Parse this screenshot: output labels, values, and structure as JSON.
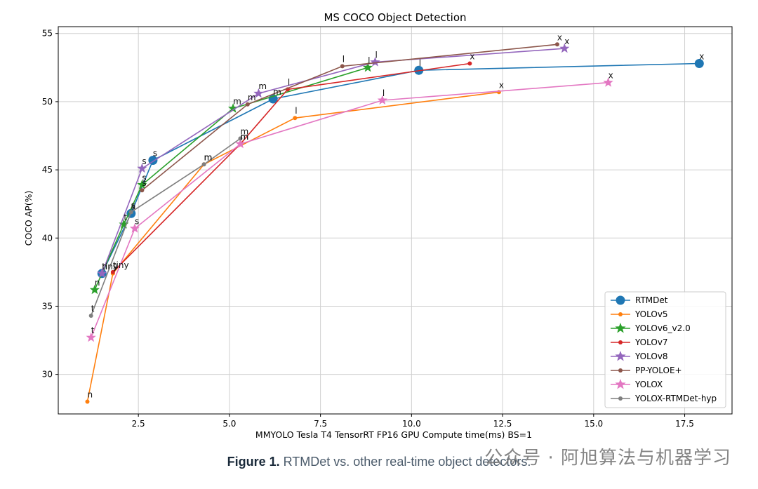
{
  "chart_data": {
    "type": "line",
    "title": "MS COCO Object Detection",
    "xlabel": "MMYOLO Tesla T4 TensorRT FP16 GPU Compute time(ms) BS=1",
    "ylabel": "COCO AP(%)",
    "xlim": [
      0.3,
      18.8
    ],
    "ylim": [
      27.1,
      55.5
    ],
    "xticks": [
      2.5,
      5.0,
      7.5,
      10.0,
      12.5,
      15.0,
      17.5
    ],
    "xtick_labels": [
      "2.5",
      "5.0",
      "7.5",
      "10.0",
      "12.5",
      "15.0",
      "17.5"
    ],
    "yticks": [
      30,
      35,
      40,
      45,
      50,
      55
    ],
    "ytick_labels": [
      "30",
      "35",
      "40",
      "45",
      "50",
      "55"
    ],
    "grid": true,
    "legend_position": "lower-right",
    "series": [
      {
        "name": "RTMDet",
        "color": "#1f77b4",
        "marker": "circle",
        "points": [
          {
            "x": 1.5,
            "y": 37.4,
            "label": "tiny"
          },
          {
            "x": 2.3,
            "y": 41.8,
            "label": "s"
          },
          {
            "x": 2.9,
            "y": 45.7,
            "label": "s"
          },
          {
            "x": 6.2,
            "y": 50.2,
            "label": "m"
          },
          {
            "x": 10.2,
            "y": 52.3,
            "label": "l"
          },
          {
            "x": 17.9,
            "y": 52.8,
            "label": "x"
          }
        ]
      },
      {
        "name": "YOLOv5",
        "color": "#ff7f0e",
        "marker": "dot",
        "points": [
          {
            "x": 1.1,
            "y": 28.0,
            "label": "n"
          },
          {
            "x": 1.8,
            "y": 37.4,
            "label": "s"
          },
          {
            "x": 4.3,
            "y": 45.4,
            "label": "m"
          },
          {
            "x": 6.8,
            "y": 48.8,
            "label": "l"
          },
          {
            "x": 12.4,
            "y": 50.7,
            "label": "x"
          }
        ]
      },
      {
        "name": "YOLOv6_v2.0",
        "color": "#2ca02c",
        "marker": "star",
        "points": [
          {
            "x": 1.3,
            "y": 36.2,
            "label": "n"
          },
          {
            "x": 2.1,
            "y": 41.0,
            "label": "t"
          },
          {
            "x": 2.6,
            "y": 43.9,
            "label": "s"
          },
          {
            "x": 5.1,
            "y": 49.5,
            "label": "m"
          },
          {
            "x": 8.8,
            "y": 52.5,
            "label": "l"
          }
        ]
      },
      {
        "name": "YOLOv7",
        "color": "#d62728",
        "marker": "dot",
        "points": [
          {
            "x": 1.8,
            "y": 37.5,
            "label": "tiny"
          },
          {
            "x": 5.3,
            "y": 46.9,
            "label": "m"
          },
          {
            "x": 6.6,
            "y": 50.9,
            "label": "l"
          },
          {
            "x": 11.6,
            "y": 52.8,
            "label": "x"
          }
        ]
      },
      {
        "name": "YOLOv8",
        "color": "#9467bd",
        "marker": "star",
        "points": [
          {
            "x": 1.5,
            "y": 37.4,
            "label": "n"
          },
          {
            "x": 2.6,
            "y": 45.1,
            "label": "s"
          },
          {
            "x": 5.8,
            "y": 50.6,
            "label": "m"
          },
          {
            "x": 9.0,
            "y": 52.9,
            "label": "l"
          },
          {
            "x": 14.2,
            "y": 53.9,
            "label": "x"
          }
        ]
      },
      {
        "name": "PP-YOLOE+",
        "color": "#8c564b",
        "marker": "dot",
        "points": [
          {
            "x": 2.6,
            "y": 43.5,
            "label": "s"
          },
          {
            "x": 5.5,
            "y": 49.8,
            "label": "m"
          },
          {
            "x": 8.1,
            "y": 52.6,
            "label": "l"
          },
          {
            "x": 14.0,
            "y": 54.2,
            "label": "x"
          }
        ]
      },
      {
        "name": "YOLOX",
        "color": "#e377c2",
        "marker": "star",
        "points": [
          {
            "x": 1.2,
            "y": 32.7,
            "label": "t"
          },
          {
            "x": 2.4,
            "y": 40.7,
            "label": "s"
          },
          {
            "x": 5.3,
            "y": 46.9,
            "label": "m"
          },
          {
            "x": 9.2,
            "y": 50.1,
            "label": "l"
          },
          {
            "x": 15.4,
            "y": 51.4,
            "label": "x"
          }
        ]
      },
      {
        "name": "YOLOX-RTMDet-hyp",
        "color": "#7f7f7f",
        "marker": "dot",
        "points": [
          {
            "x": 1.2,
            "y": 34.3,
            "label": "t"
          },
          {
            "x": 2.3,
            "y": 41.9,
            "label": "s"
          },
          {
            "x": 4.3,
            "y": 45.4,
            "label": "m"
          },
          {
            "x": 5.3,
            "y": 47.3,
            "label": "m"
          }
        ]
      }
    ]
  },
  "caption": {
    "bold": "Figure 1.",
    "text": "RTMDet vs. other real-time object detectors."
  },
  "watermark": "公众号 · 阿旭算法与机器学习"
}
